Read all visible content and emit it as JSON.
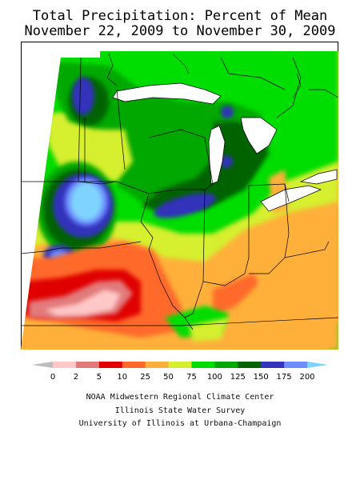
{
  "title": "Total Precipitation: Percent of Mean",
  "subtitle": "November 22, 2009 to November 30, 2009",
  "legend": {
    "labels": [
      "0",
      "2",
      "5",
      "10",
      "25",
      "50",
      "75",
      "100",
      "125",
      "150",
      "175",
      "200"
    ],
    "colors": [
      "#bdbdbd",
      "#ffc8c8",
      "#e27a7a",
      "#e00000",
      "#ff6a2a",
      "#ffb03a",
      "#d6ef2e",
      "#00dd00",
      "#00a800",
      "#006300",
      "#3333bb",
      "#6c8cff",
      "#7fd4ff"
    ]
  },
  "credits": [
    "NOAA Midwestern Regional Climate Center",
    "Illinois State Water Survey",
    "University of Illinois at Urbana-Champaign"
  ]
}
